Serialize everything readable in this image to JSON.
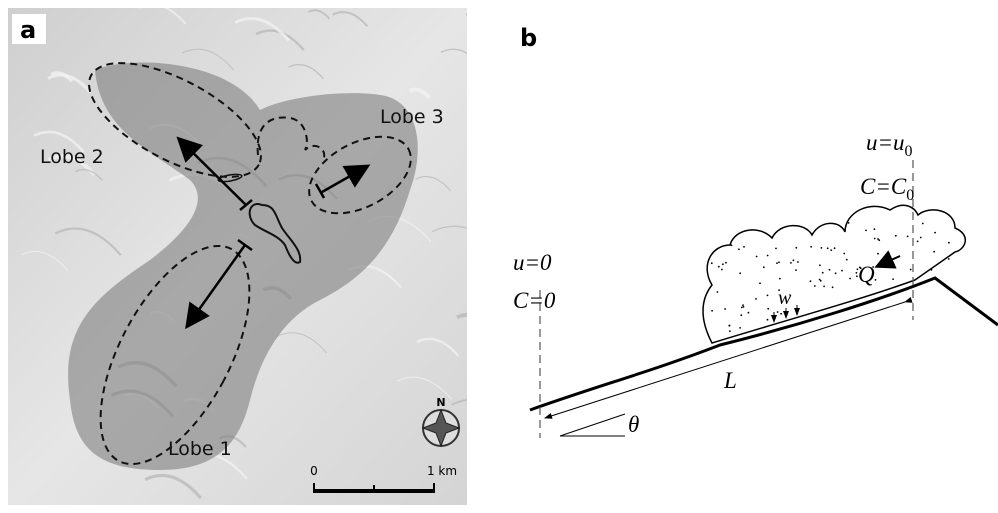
{
  "panel_a": {
    "label": "a",
    "lobes": [
      "Lobe 1",
      "Lobe 2",
      "Lobe 3"
    ],
    "scale": {
      "start": "0",
      "end": "1 km"
    },
    "compass": "N"
  },
  "panel_b": {
    "label": "b",
    "left_boundary": {
      "velocity": "u=0",
      "concentration": "C=0"
    },
    "right_boundary": {
      "velocity": {
        "text": "u=u",
        "subscript": "0"
      },
      "concentration": {
        "text": "C=C",
        "subscript": "0"
      }
    },
    "flux": "Q",
    "settling": "w",
    "length": "L",
    "angle": "θ"
  }
}
